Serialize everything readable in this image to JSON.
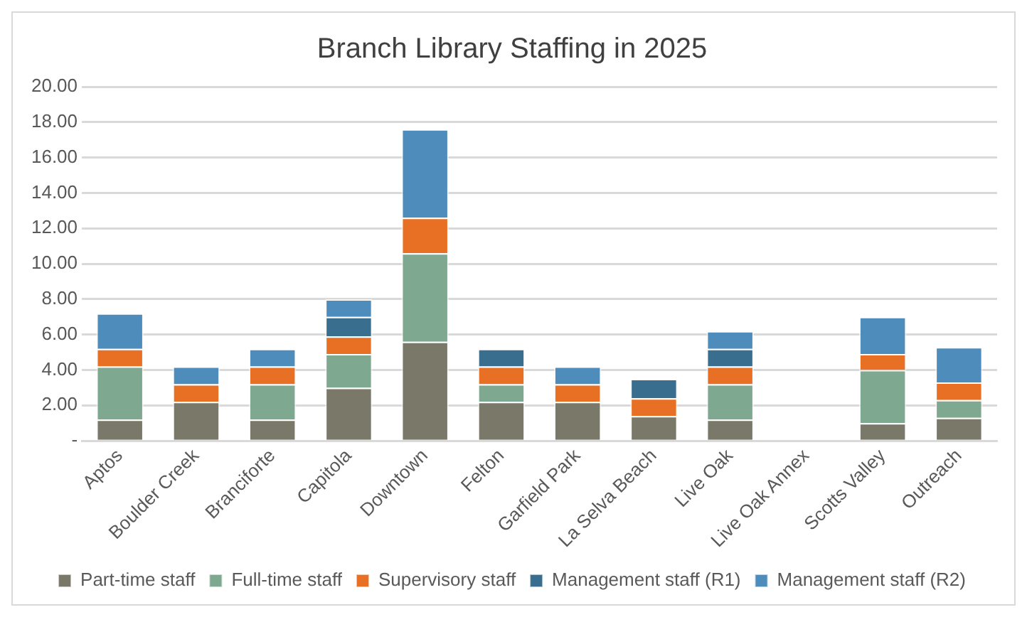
{
  "chart_data": {
    "type": "bar",
    "title": "Branch Library Staffing in 2025",
    "stacked": true,
    "categories": [
      "Aptos",
      "Boulder Creek",
      "Branciforte",
      "Capitola",
      "Downtown",
      "Felton",
      "Garfield Park",
      "La Selva Beach",
      "Live Oak",
      "Live Oak Annex",
      "Scotts Valley",
      "Outreach"
    ],
    "series": [
      {
        "name": "Part-time staff",
        "color": "#7a7868",
        "values": [
          1.2,
          2.2,
          1.2,
          3.0,
          5.6,
          2.2,
          2.2,
          1.4,
          1.2,
          0,
          1.0,
          1.3
        ]
      },
      {
        "name": "Full-time staff",
        "color": "#7ea88f",
        "values": [
          3.0,
          0,
          2.0,
          1.9,
          5.0,
          1.0,
          0,
          0,
          2.0,
          0,
          3.0,
          1.0
        ]
      },
      {
        "name": "Supervisory staff",
        "color": "#e87025",
        "values": [
          1.0,
          1.0,
          1.0,
          1.0,
          2.0,
          1.0,
          1.0,
          1.0,
          1.0,
          0,
          0.9,
          1.0
        ]
      },
      {
        "name": "Management staff (R1)",
        "color": "#3a6e8f",
        "values": [
          0,
          0,
          0,
          1.1,
          0,
          1.0,
          0,
          1.1,
          1.0,
          0,
          0,
          0
        ]
      },
      {
        "name": "Management staff (R2)",
        "color": "#4e8cbb",
        "values": [
          2.0,
          1.0,
          1.0,
          1.0,
          5.0,
          0,
          1.0,
          0,
          1.0,
          0,
          2.1,
          2.0
        ]
      }
    ],
    "ylim": [
      0,
      20
    ],
    "yticks": [
      {
        "value": 0,
        "label": "-"
      },
      {
        "value": 2,
        "label": "2.00"
      },
      {
        "value": 4,
        "label": "4.00"
      },
      {
        "value": 6,
        "label": "6.00"
      },
      {
        "value": 8,
        "label": "8.00"
      },
      {
        "value": 10,
        "label": "10.00"
      },
      {
        "value": 12,
        "label": "12.00"
      },
      {
        "value": 14,
        "label": "14.00"
      },
      {
        "value": 16,
        "label": "16.00"
      },
      {
        "value": 18,
        "label": "18.00"
      },
      {
        "value": 20,
        "label": "20.00"
      }
    ],
    "grid": "y",
    "legend": "bottom"
  }
}
